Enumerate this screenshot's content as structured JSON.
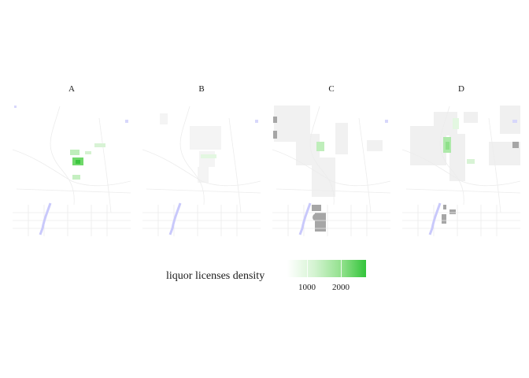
{
  "panels": [
    {
      "title": "A"
    },
    {
      "title": "B"
    },
    {
      "title": "C"
    },
    {
      "title": "D"
    }
  ],
  "legend": {
    "title": "liquor licenses density",
    "ticks": [
      {
        "value": 1000,
        "label": "1000",
        "fraction": 0.25
      },
      {
        "value": 2000,
        "label": "2000",
        "fraction": 0.68
      }
    ],
    "low_color": "#ffffff",
    "high_color": "#33c43a"
  },
  "colors": {
    "water": "#d7d7fb",
    "land_fill": "#f2f2f2",
    "missing": "#a6a6a6",
    "road": "#ececec"
  }
}
